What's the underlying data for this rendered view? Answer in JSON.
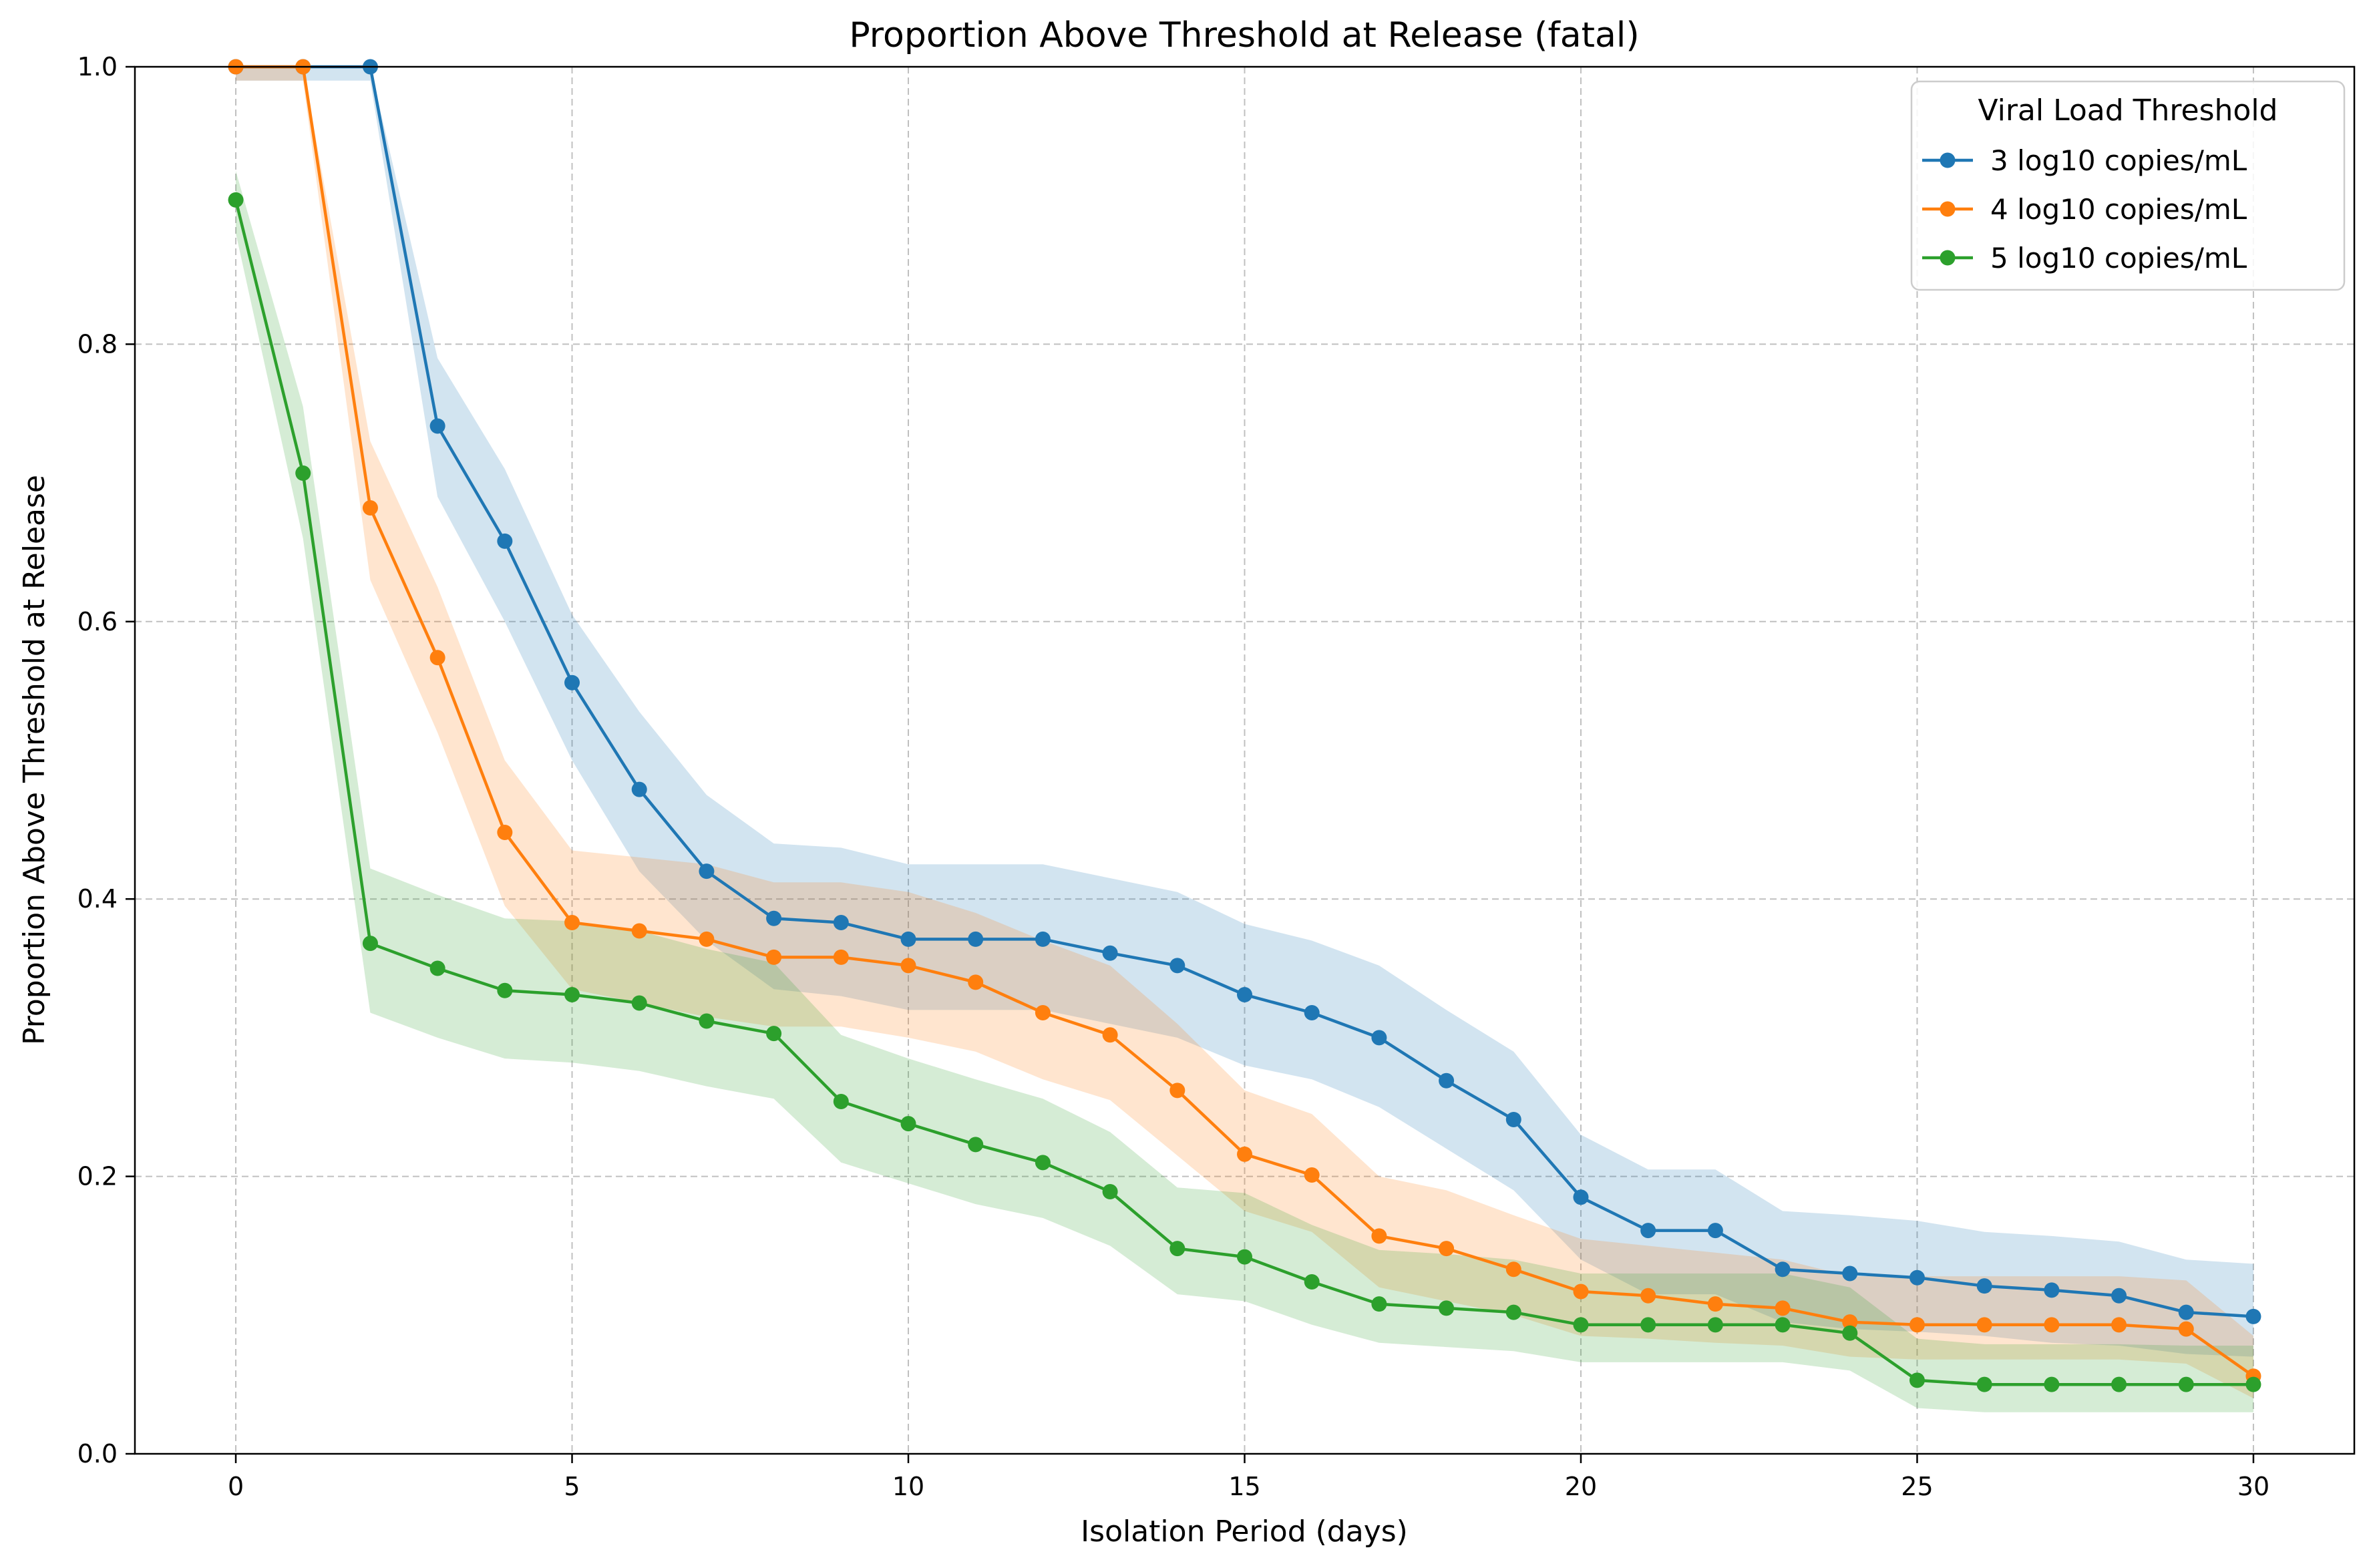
{
  "chart_data": {
    "type": "line",
    "title": "Proportion Above Threshold at Release (fatal)",
    "xlabel": "Isolation Period (days)",
    "ylabel": "Proportion Above Threshold at Release",
    "xlim": [
      -1.5,
      31.5
    ],
    "ylim": [
      0,
      1.0
    ],
    "xticks": [
      0,
      5,
      10,
      15,
      20,
      25,
      30
    ],
    "yticks": [
      0.0,
      0.2,
      0.4,
      0.6,
      0.8,
      1.0
    ],
    "xtick_labels": [
      "0",
      "5",
      "10",
      "15",
      "20",
      "25",
      "30"
    ],
    "ytick_labels": [
      "0.0",
      "0.2",
      "0.4",
      "0.6",
      "0.8",
      "1.0"
    ],
    "grid": true,
    "legend": {
      "title": "Viral Load Threshold",
      "placement": "top-right"
    },
    "x": [
      0,
      1,
      2,
      3,
      4,
      5,
      6,
      7,
      8,
      9,
      10,
      11,
      12,
      13,
      14,
      15,
      16,
      17,
      18,
      19,
      20,
      21,
      22,
      23,
      24,
      25,
      26,
      27,
      28,
      29,
      30
    ],
    "series": [
      {
        "name": "3 log10 copies/mL",
        "color": "#1f77b4",
        "values": [
          1.0,
          1.0,
          1.0,
          0.741,
          0.658,
          0.556,
          0.479,
          0.42,
          0.386,
          0.383,
          0.371,
          0.371,
          0.371,
          0.361,
          0.352,
          0.331,
          0.318,
          0.3,
          0.269,
          0.241,
          0.185,
          0.161,
          0.161,
          0.133,
          0.13,
          0.127,
          0.121,
          0.118,
          0.114,
          0.102,
          0.099
        ],
        "lower": [
          0.99,
          0.99,
          0.99,
          0.69,
          0.6,
          0.5,
          0.42,
          0.37,
          0.335,
          0.33,
          0.32,
          0.32,
          0.32,
          0.31,
          0.3,
          0.28,
          0.27,
          0.25,
          0.22,
          0.19,
          0.14,
          0.115,
          0.115,
          0.095,
          0.09,
          0.088,
          0.085,
          0.08,
          0.078,
          0.072,
          0.07
        ],
        "upper": [
          1.0,
          1.0,
          1.0,
          0.79,
          0.71,
          0.605,
          0.535,
          0.475,
          0.44,
          0.437,
          0.425,
          0.425,
          0.425,
          0.415,
          0.405,
          0.382,
          0.37,
          0.352,
          0.32,
          0.29,
          0.23,
          0.205,
          0.205,
          0.175,
          0.172,
          0.168,
          0.16,
          0.157,
          0.153,
          0.14,
          0.137
        ]
      },
      {
        "name": "4 log10 copies/mL",
        "color": "#ff7f0e",
        "values": [
          1.0,
          1.0,
          0.682,
          0.574,
          0.448,
          0.383,
          0.377,
          0.371,
          0.358,
          0.358,
          0.352,
          0.34,
          0.318,
          0.302,
          0.262,
          0.216,
          0.201,
          0.157,
          0.148,
          0.133,
          0.117,
          0.114,
          0.108,
          0.105,
          0.095,
          0.093,
          0.093,
          0.093,
          0.093,
          0.09,
          0.056
        ],
        "lower": [
          0.99,
          0.99,
          0.63,
          0.52,
          0.395,
          0.335,
          0.325,
          0.315,
          0.308,
          0.308,
          0.3,
          0.29,
          0.27,
          0.255,
          0.215,
          0.175,
          0.16,
          0.12,
          0.11,
          0.1,
          0.085,
          0.083,
          0.08,
          0.078,
          0.07,
          0.068,
          0.068,
          0.068,
          0.068,
          0.065,
          0.04
        ],
        "upper": [
          1.0,
          1.0,
          0.73,
          0.625,
          0.5,
          0.435,
          0.43,
          0.425,
          0.412,
          0.412,
          0.405,
          0.39,
          0.37,
          0.352,
          0.31,
          0.262,
          0.245,
          0.2,
          0.19,
          0.172,
          0.155,
          0.15,
          0.145,
          0.14,
          0.128,
          0.128,
          0.128,
          0.128,
          0.128,
          0.125,
          0.085
        ]
      },
      {
        "name": "5 log10 copies/mL",
        "color": "#2ca02c",
        "values": [
          0.904,
          0.707,
          0.368,
          0.35,
          0.334,
          0.331,
          0.325,
          0.312,
          0.303,
          0.254,
          0.238,
          0.223,
          0.21,
          0.189,
          0.148,
          0.142,
          0.124,
          0.108,
          0.105,
          0.102,
          0.093,
          0.093,
          0.093,
          0.093,
          0.087,
          0.053,
          0.05,
          0.05,
          0.05,
          0.05,
          0.05
        ],
        "lower": [
          0.88,
          0.66,
          0.318,
          0.3,
          0.285,
          0.282,
          0.276,
          0.265,
          0.256,
          0.21,
          0.195,
          0.18,
          0.17,
          0.15,
          0.115,
          0.11,
          0.093,
          0.08,
          0.077,
          0.074,
          0.066,
          0.066,
          0.066,
          0.066,
          0.06,
          0.033,
          0.03,
          0.03,
          0.03,
          0.03,
          0.03
        ],
        "upper": [
          0.925,
          0.755,
          0.422,
          0.403,
          0.386,
          0.384,
          0.377,
          0.364,
          0.354,
          0.302,
          0.285,
          0.27,
          0.256,
          0.232,
          0.192,
          0.188,
          0.165,
          0.147,
          0.144,
          0.14,
          0.13,
          0.13,
          0.13,
          0.13,
          0.12,
          0.083,
          0.079,
          0.079,
          0.079,
          0.078,
          0.078
        ]
      }
    ]
  }
}
